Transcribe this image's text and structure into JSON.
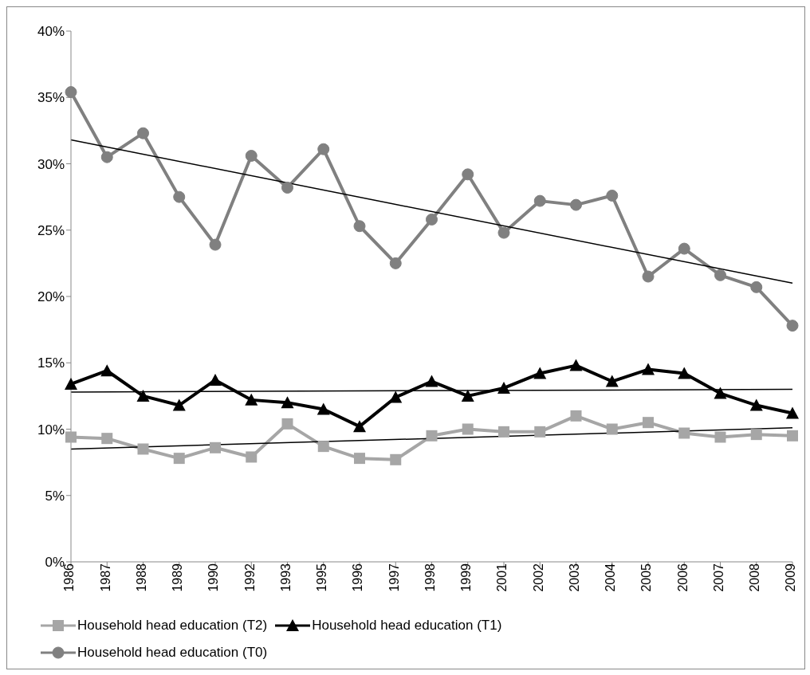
{
  "chart_data": {
    "type": "line",
    "categories": [
      "1986",
      "1987",
      "1988",
      "1989",
      "1990",
      "1992",
      "1993",
      "1995",
      "1996",
      "1997",
      "1998",
      "1999",
      "2001",
      "2002",
      "2003",
      "2004",
      "2005",
      "2006",
      "2007",
      "2008",
      "2009"
    ],
    "series": [
      {
        "name": "Household head education (T2)",
        "color": "#a6a6a6",
        "marker": "square",
        "values": [
          9.4,
          9.3,
          8.5,
          7.8,
          8.6,
          7.9,
          10.4,
          8.7,
          7.8,
          7.7,
          9.5,
          10.0,
          9.8,
          9.8,
          11.0,
          10.0,
          10.5,
          9.7,
          9.4,
          9.6,
          9.5
        ]
      },
      {
        "name": "Household head education (T1)",
        "color": "#000000",
        "marker": "triangle",
        "values": [
          13.4,
          14.4,
          12.5,
          11.8,
          13.7,
          12.2,
          12.0,
          11.5,
          10.2,
          12.4,
          13.6,
          12.5,
          13.1,
          14.2,
          14.8,
          13.6,
          14.5,
          14.2,
          12.7,
          11.8,
          11.2
        ]
      },
      {
        "name": "Household head education (T0)",
        "color": "#808080",
        "marker": "circle",
        "values": [
          35.4,
          30.5,
          32.3,
          27.5,
          23.9,
          30.6,
          28.2,
          31.1,
          25.3,
          22.5,
          25.8,
          29.2,
          24.8,
          27.2,
          26.9,
          27.6,
          21.5,
          23.6,
          21.6,
          20.7,
          17.8
        ]
      },
      {
        "type": "line",
        "color": "#000000",
        "marker": "none",
        "values": [
          8.5,
          null,
          null,
          null,
          null,
          null,
          null,
          null,
          null,
          null,
          null,
          null,
          null,
          null,
          null,
          null,
          null,
          null,
          null,
          null,
          10.1
        ]
      },
      {
        "type": "line",
        "color": "#000000",
        "marker": "none",
        "values": [
          12.8,
          null,
          null,
          null,
          null,
          null,
          null,
          null,
          null,
          null,
          null,
          null,
          null,
          null,
          null,
          null,
          null,
          null,
          null,
          null,
          13.0
        ]
      },
      {
        "type": "line",
        "color": "#000000",
        "marker": "none",
        "values": [
          31.8,
          null,
          null,
          null,
          null,
          null,
          null,
          null,
          null,
          null,
          null,
          null,
          null,
          null,
          null,
          null,
          null,
          null,
          null,
          null,
          21.0
        ]
      }
    ],
    "ylim": [
      0,
      40
    ],
    "yticks": [
      {
        "value": 0,
        "label": "0%"
      },
      {
        "value": 5,
        "label": "5%"
      },
      {
        "value": 10,
        "label": "10%"
      },
      {
        "value": 15,
        "label": "15%"
      },
      {
        "value": 20,
        "label": "20%"
      },
      {
        "value": 25,
        "label": "25%"
      },
      {
        "value": 30,
        "label": "30%"
      },
      {
        "value": 35,
        "label": "35%"
      },
      {
        "value": 40,
        "label": "40%"
      }
    ],
    "legend": "bottom"
  }
}
